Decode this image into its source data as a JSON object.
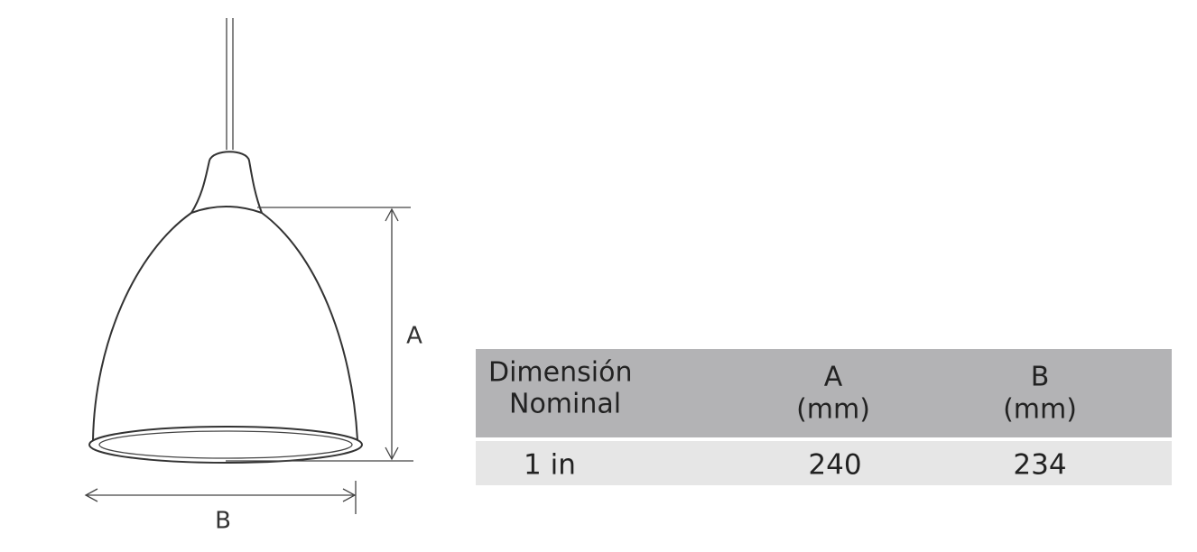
{
  "diagram": {
    "labels": {
      "height": "A",
      "width": "B"
    }
  },
  "table": {
    "header": [
      [
        "Dimensión",
        "Nominal"
      ],
      [
        "A",
        "(mm)"
      ],
      [
        "B",
        "(mm)"
      ]
    ],
    "rows": [
      [
        "1 in",
        "240",
        "234"
      ]
    ]
  }
}
